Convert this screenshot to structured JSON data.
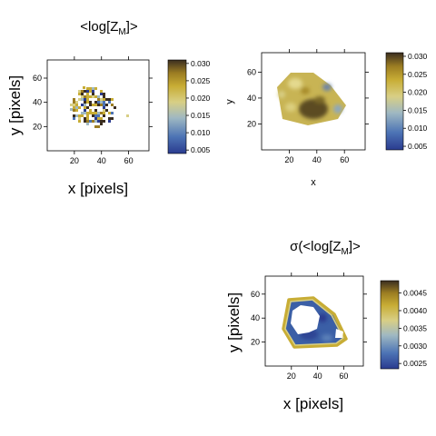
{
  "chart_data": [
    {
      "type": "heatmap",
      "title": "<log[Z",
      "title_sub": "M",
      "title_end": "]>",
      "xlabel": "x [pixels]",
      "ylabel": "y [pixels]",
      "xticks": [
        20,
        40,
        60
      ],
      "yticks": [
        20,
        40,
        60
      ],
      "xlim": [
        0,
        75
      ],
      "ylim": [
        0,
        75
      ],
      "colorbar_ticks": [
        "0.030",
        "0.025",
        "0.020",
        "0.015",
        "0.010",
        "0.005"
      ],
      "colorbar_range": [
        0.004,
        0.031
      ],
      "colormap": [
        "#2a3b8f",
        "#4d74b5",
        "#9fb8c2",
        "#d8cf85",
        "#c8ad35",
        "#9c7d22",
        "#3a2d20"
      ]
    },
    {
      "type": "heatmap",
      "title": "",
      "xlabel": "x",
      "ylabel": "y",
      "xticks": [
        20,
        40,
        60
      ],
      "yticks": [
        20,
        40,
        60
      ],
      "xlim": [
        0,
        75
      ],
      "ylim": [
        0,
        75
      ],
      "colorbar_ticks": [
        "0.030",
        "0.025",
        "0.020",
        "0.015",
        "0.010",
        "0.005"
      ],
      "colorbar_range": [
        0.004,
        0.031
      ],
      "colormap": [
        "#2a3b8f",
        "#4d74b5",
        "#9fb8c2",
        "#d8cf85",
        "#c8ad35",
        "#9c7d22",
        "#3a2d20"
      ]
    },
    {
      "type": "heatmap",
      "title": "σ(<log[Z",
      "title_sub": "M",
      "title_end": "]>",
      "xlabel": "x [pixels]",
      "ylabel": "y [pixels]",
      "xticks": [
        20,
        40,
        60
      ],
      "yticks": [
        20,
        40,
        60
      ],
      "xlim": [
        0,
        75
      ],
      "ylim": [
        0,
        75
      ],
      "colorbar_ticks": [
        "0.0045",
        "0.0040",
        "0.0035",
        "0.0030",
        "0.0025"
      ],
      "colorbar_range": [
        0.00235,
        0.00485
      ],
      "colormap": [
        "#2a3b8f",
        "#4d74b5",
        "#9fb8c2",
        "#d8cf85",
        "#c8ad35",
        "#9c7d22",
        "#3a2d20"
      ]
    }
  ]
}
